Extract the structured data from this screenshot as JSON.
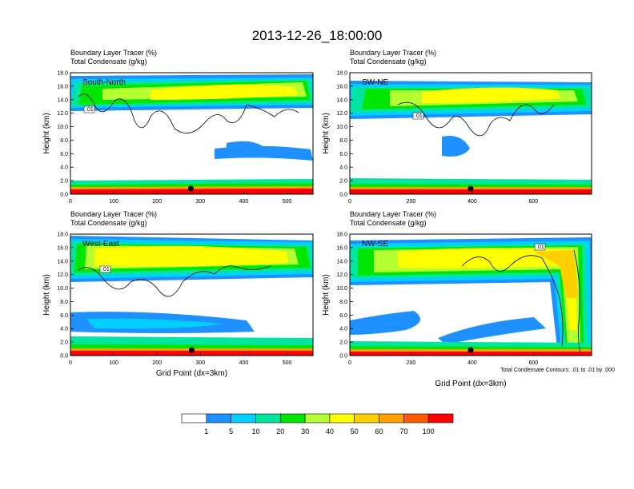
{
  "title": "2013-12-26_18:00:00",
  "chart_data": [
    {
      "type": "heatmap",
      "panel_label": "South-North",
      "subtitle_1": "Boundary Layer Tracer   (%)",
      "subtitle_2": "Total Condensate   (g/kg)",
      "ylabel": "Height (km)",
      "xlabel": "",
      "xlim": [
        0,
        560
      ],
      "ylim": [
        0,
        18
      ],
      "xticks": [
        0,
        100,
        200,
        300,
        400,
        500
      ],
      "yticks": [
        "0.0",
        "2.0",
        "4.0",
        "6.0",
        "8.0",
        "10.0",
        "12.0",
        "14.0",
        "16.0",
        "18.0"
      ],
      "marker_x": 278,
      "contour_label": ".01"
    },
    {
      "type": "heatmap",
      "panel_label": "SW-NE",
      "subtitle_1": "Boundary Layer Tracer   (%)",
      "subtitle_2": "Total Condensate   (g/kg)",
      "ylabel": "Height (km)",
      "xlabel": "",
      "xlim": [
        0,
        790
      ],
      "ylim": [
        0,
        18
      ],
      "xticks": [
        0,
        200,
        400,
        600
      ],
      "yticks": [
        "0.0",
        "2.0",
        "4.0",
        "6.0",
        "8.0",
        "10.0",
        "12.0",
        "14.0",
        "16.0",
        "18.0"
      ],
      "marker_x": 395,
      "contour_label": ".01"
    },
    {
      "type": "heatmap",
      "panel_label": "West-East",
      "subtitle_1": "Boundary Layer Tracer   (%)",
      "subtitle_2": "Total Condensate   (g/kg)",
      "ylabel": "Height (km)",
      "xlabel": "Grid Point (dx=3km)",
      "xlim": [
        0,
        560
      ],
      "ylim": [
        0,
        18
      ],
      "xticks": [
        0,
        100,
        200,
        300,
        400,
        500
      ],
      "yticks": [
        "0.0",
        "2.0",
        "4.0",
        "6.0",
        "8.0",
        "10.0",
        "12.0",
        "14.0",
        "16.0",
        "18.0"
      ],
      "marker_x": 280,
      "contour_label": ".01"
    },
    {
      "type": "heatmap",
      "panel_label": "NW-SE",
      "subtitle_1": "Boundary Layer Tracer   (%)",
      "subtitle_2": "Total Condensate   (g/kg)",
      "ylabel": "Height (km)",
      "xlabel": "Grid Point (dx=3km)",
      "xlim": [
        0,
        790
      ],
      "ylim": [
        0,
        18
      ],
      "xticks": [
        0,
        200,
        400,
        600
      ],
      "yticks": [
        "0.0",
        "2.0",
        "4.0",
        "6.0",
        "8.0",
        "10.0",
        "12.0",
        "14.0",
        "16.0",
        "18.0"
      ],
      "marker_x": 395,
      "contour_label": ".01",
      "note": "Total Condensate Contours: .01 to .01 by .000"
    }
  ],
  "colorbar": {
    "labels": [
      "1",
      "5",
      "10",
      "20",
      "30",
      "40",
      "50",
      "60",
      "70",
      "100"
    ],
    "colors": [
      "#ffffff",
      "#1e90ff",
      "#00cfff",
      "#00e6a0",
      "#00e600",
      "#b4ff32",
      "#ffff00",
      "#ffd000",
      "#ffa000",
      "#ff5a00",
      "#ff0000"
    ]
  }
}
